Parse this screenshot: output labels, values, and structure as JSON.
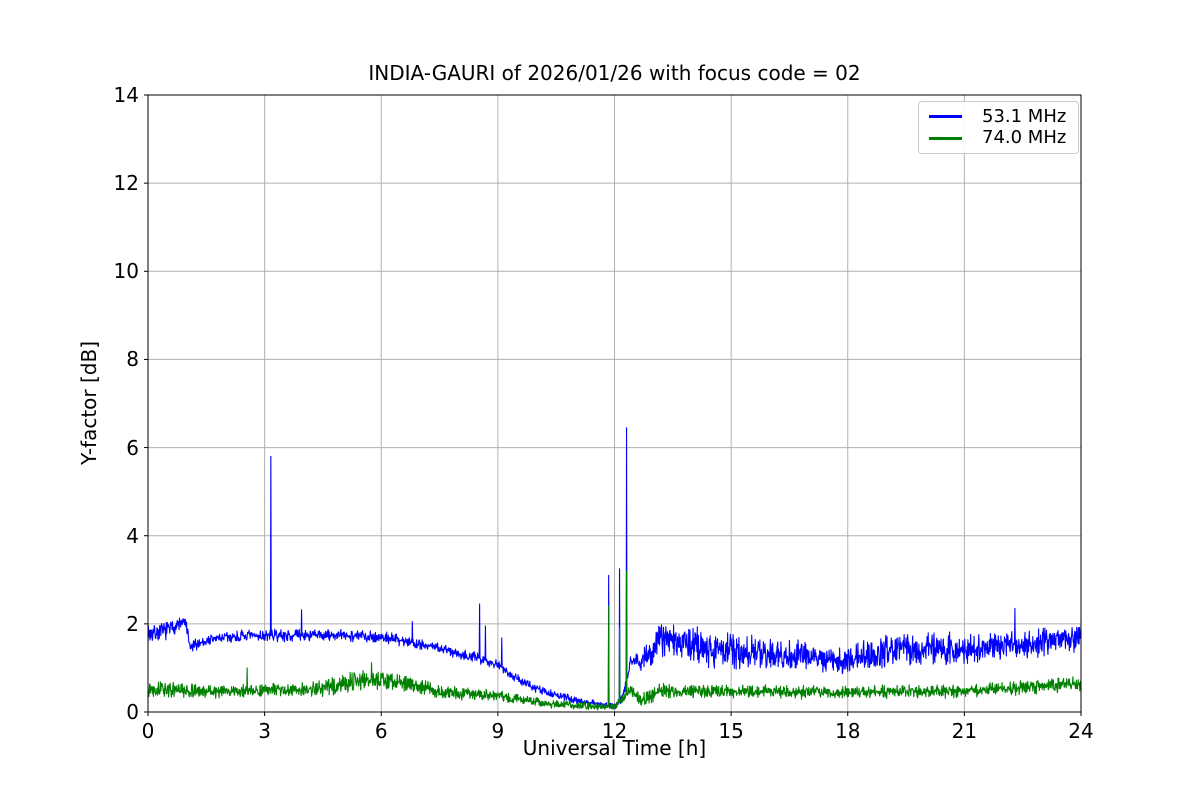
{
  "chart_data": {
    "type": "line",
    "title": "INDIA-GAURI of 2026/01/26 with focus code = 02",
    "xlabel": "Universal Time [h]",
    "ylabel": "Y-factor [dB]",
    "xlim": [
      0,
      24
    ],
    "ylim": [
      0,
      14
    ],
    "xticks": [
      0,
      3,
      6,
      9,
      12,
      15,
      18,
      21,
      24
    ],
    "yticks": [
      0,
      2,
      4,
      6,
      8,
      10,
      12,
      14
    ],
    "grid": true,
    "grid_color": "#b0b0b0",
    "legend": {
      "position": "upper right",
      "entries": [
        "53.1 MHz",
        "74.0 MHz"
      ]
    },
    "series": [
      {
        "name": "53.1 MHz",
        "color": "#0000ff",
        "baseline": [
          [
            0,
            1.78
          ],
          [
            0.35,
            1.82
          ],
          [
            0.6,
            1.9
          ],
          [
            0.8,
            2.0
          ],
          [
            0.97,
            2.02
          ],
          [
            1.08,
            1.45
          ],
          [
            1.35,
            1.58
          ],
          [
            1.8,
            1.68
          ],
          [
            2.5,
            1.72
          ],
          [
            3.5,
            1.74
          ],
          [
            4.5,
            1.74
          ],
          [
            5.5,
            1.73
          ],
          [
            6.2,
            1.68
          ],
          [
            6.8,
            1.58
          ],
          [
            7.4,
            1.47
          ],
          [
            8.0,
            1.33
          ],
          [
            8.6,
            1.2
          ],
          [
            9.0,
            1.08
          ],
          [
            9.5,
            0.75
          ],
          [
            10.0,
            0.52
          ],
          [
            10.5,
            0.38
          ],
          [
            11.0,
            0.27
          ],
          [
            11.5,
            0.2
          ],
          [
            11.8,
            0.16
          ],
          [
            11.95,
            0.14
          ],
          [
            12.08,
            0.18
          ],
          [
            12.25,
            0.45
          ],
          [
            12.4,
            1.15
          ],
          [
            12.7,
            1.18
          ],
          [
            12.95,
            1.3
          ],
          [
            13.1,
            1.68
          ],
          [
            13.5,
            1.6
          ],
          [
            14,
            1.52
          ],
          [
            15,
            1.38
          ],
          [
            16,
            1.32
          ],
          [
            17,
            1.25
          ],
          [
            17.8,
            1.15
          ],
          [
            18.6,
            1.3
          ],
          [
            19.3,
            1.45
          ],
          [
            20,
            1.45
          ],
          [
            21,
            1.4
          ],
          [
            21.6,
            1.48
          ],
          [
            22.1,
            1.52
          ],
          [
            22.7,
            1.55
          ],
          [
            23.2,
            1.62
          ],
          [
            23.6,
            1.7
          ],
          [
            24,
            1.7
          ]
        ],
        "noise": [
          [
            0,
            0.2
          ],
          [
            0.7,
            0.16
          ],
          [
            1.2,
            0.12
          ],
          [
            2,
            0.12
          ],
          [
            4,
            0.12
          ],
          [
            6,
            0.12
          ],
          [
            8,
            0.11
          ],
          [
            9,
            0.1
          ],
          [
            10,
            0.09
          ],
          [
            11,
            0.07
          ],
          [
            11.8,
            0.05
          ],
          [
            12.1,
            0.07
          ],
          [
            12.45,
            0.2
          ],
          [
            12.8,
            0.26
          ],
          [
            13.2,
            0.38
          ],
          [
            14,
            0.36
          ],
          [
            15,
            0.35
          ],
          [
            16,
            0.33
          ],
          [
            17,
            0.3
          ],
          [
            18,
            0.28
          ],
          [
            19,
            0.32
          ],
          [
            20,
            0.33
          ],
          [
            21,
            0.3
          ],
          [
            22,
            0.28
          ],
          [
            23,
            0.28
          ],
          [
            24,
            0.27
          ]
        ],
        "spikes": [
          [
            3.16,
            5.8
          ],
          [
            3.95,
            2.32
          ],
          [
            6.8,
            2.05
          ],
          [
            8.53,
            2.45
          ],
          [
            8.68,
            1.95
          ],
          [
            9.1,
            1.68
          ],
          [
            11.85,
            3.1
          ],
          [
            12.13,
            3.25
          ],
          [
            12.31,
            6.45
          ],
          [
            22.3,
            2.35
          ]
        ]
      },
      {
        "name": "74.0 MHz",
        "color": "#008000",
        "baseline": [
          [
            0,
            0.55
          ],
          [
            0.6,
            0.5
          ],
          [
            1.2,
            0.47
          ],
          [
            2,
            0.47
          ],
          [
            3,
            0.49
          ],
          [
            4,
            0.5
          ],
          [
            4.6,
            0.56
          ],
          [
            5.2,
            0.68
          ],
          [
            5.8,
            0.75
          ],
          [
            6.2,
            0.72
          ],
          [
            6.7,
            0.63
          ],
          [
            7.1,
            0.56
          ],
          [
            7.5,
            0.46
          ],
          [
            8.2,
            0.42
          ],
          [
            9,
            0.36
          ],
          [
            9.6,
            0.28
          ],
          [
            10.1,
            0.2
          ],
          [
            10.6,
            0.17
          ],
          [
            11.1,
            0.15
          ],
          [
            11.7,
            0.12
          ],
          [
            12.0,
            0.13
          ],
          [
            12.2,
            0.3
          ],
          [
            12.45,
            0.5
          ],
          [
            12.65,
            0.28
          ],
          [
            12.85,
            0.3
          ],
          [
            13.1,
            0.48
          ],
          [
            14,
            0.48
          ],
          [
            15,
            0.46
          ],
          [
            16,
            0.46
          ],
          [
            17,
            0.45
          ],
          [
            18,
            0.45
          ],
          [
            19,
            0.46
          ],
          [
            20,
            0.47
          ],
          [
            21,
            0.48
          ],
          [
            22,
            0.52
          ],
          [
            23,
            0.58
          ],
          [
            23.6,
            0.64
          ],
          [
            24,
            0.64
          ]
        ],
        "noise": [
          [
            0,
            0.16
          ],
          [
            1,
            0.14
          ],
          [
            2,
            0.13
          ],
          [
            3,
            0.13
          ],
          [
            4,
            0.14
          ],
          [
            5,
            0.19
          ],
          [
            6,
            0.19
          ],
          [
            6.8,
            0.16
          ],
          [
            7.5,
            0.13
          ],
          [
            8.5,
            0.12
          ],
          [
            9.5,
            0.1
          ],
          [
            10.5,
            0.09
          ],
          [
            11.5,
            0.07
          ],
          [
            12.0,
            0.06
          ],
          [
            12.3,
            0.1
          ],
          [
            12.7,
            0.16
          ],
          [
            13.2,
            0.15
          ],
          [
            15,
            0.14
          ],
          [
            17,
            0.13
          ],
          [
            19,
            0.13
          ],
          [
            21,
            0.13
          ],
          [
            23,
            0.14
          ],
          [
            24,
            0.15
          ]
        ],
        "spikes": [
          [
            2.55,
            1.0
          ],
          [
            5.75,
            1.12
          ],
          [
            11.85,
            2.4
          ],
          [
            12.13,
            1.9
          ],
          [
            12.31,
            3.2
          ]
        ]
      }
    ]
  }
}
